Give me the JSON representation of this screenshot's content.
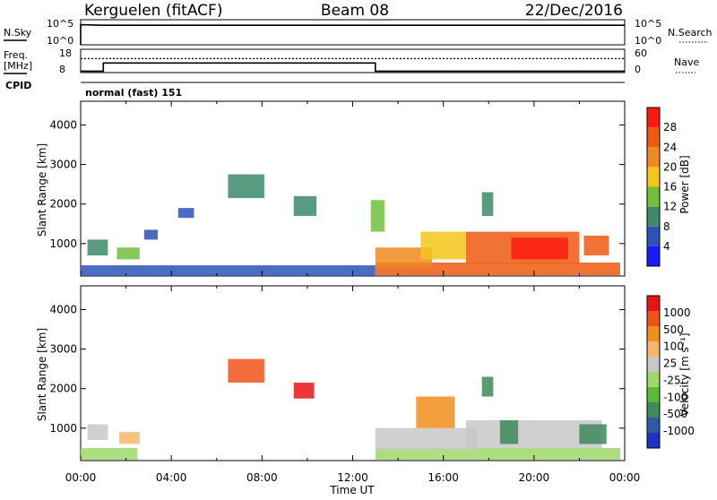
{
  "header": {
    "station": "Kerguelen (fitACF)",
    "beam": "Beam 08",
    "date": "22/Dec/2016"
  },
  "panels": {
    "nsky_label": "N.Sky",
    "nsearch_label": "N.Search",
    "freq_label_top": "Freq.",
    "freq_label_unit": "[MHz]",
    "nave_label": "Nave",
    "cpid_label": "CPID",
    "cpid_value": "normal (fast) 151",
    "noise_left_ticks": [
      "10^5",
      "10^0"
    ],
    "noise_right_ticks": [
      "10^5",
      "10^0"
    ],
    "freq_left_ticks": [
      "18",
      "8"
    ],
    "nave_right_ticks": [
      "60",
      "0"
    ]
  },
  "colors": {
    "power": [
      "#1a1aff",
      "#2a52b8",
      "#3b8a6a",
      "#6fbf3c",
      "#f5c51a",
      "#ef8a1c",
      "#ef5a10",
      "#ff1a10"
    ],
    "velocity": [
      "#e81414",
      "#f0521a",
      "#f28e1c",
      "#f6b66a",
      "#c8c8c8",
      "#a0d66a",
      "#5abb3a",
      "#3d8a5a",
      "#2e5aa8",
      "#2030c8"
    ]
  },
  "chart_data": [
    {
      "type": "line",
      "title": "N.Sky / N.Search",
      "x": [
        "00:00",
        "01:00",
        "02:00",
        "03:00",
        "04:00",
        "05:00",
        "06:00",
        "07:00",
        "08:00",
        "09:00",
        "10:00",
        "11:00",
        "12:00",
        "13:00",
        "14:00",
        "15:00",
        "16:00",
        "17:00",
        "18:00",
        "19:00",
        "20:00",
        "21:00",
        "22:00",
        "23:00",
        "24:00"
      ],
      "series": [
        {
          "name": "N.Sky",
          "values": [
            10000,
            8000,
            8000,
            8000,
            8000,
            8000,
            8000,
            8000,
            8000,
            8000,
            8000,
            8000,
            8000,
            8000,
            8000,
            8000,
            8000,
            8000,
            8000,
            8000,
            8000,
            8000,
            8000,
            8000,
            8000
          ]
        },
        {
          "name": "N.Search",
          "values": [
            10000,
            10000,
            10000,
            10000,
            10000,
            10000,
            10000,
            10000,
            10000,
            10000,
            10000,
            10000,
            10000,
            10000,
            10000,
            10000,
            10000,
            10000,
            10000,
            10000,
            10000,
            10000,
            10000,
            10000,
            10000
          ]
        }
      ],
      "ylim": [
        1,
        100000
      ]
    },
    {
      "type": "line",
      "title": "Freq. / Nave",
      "series": [
        {
          "name": "Freq.",
          "points": [
            [
              0,
              8.6
            ],
            [
              1.0,
              8.6
            ],
            [
              1.0,
              12.1
            ],
            [
              13.0,
              12.1
            ],
            [
              13.0,
              8.6
            ],
            [
              24,
              8.6
            ]
          ]
        },
        {
          "name": "Nave",
          "points": [
            [
              0,
              36
            ],
            [
              24,
              36
            ]
          ]
        }
      ],
      "ylim_freq": [
        8,
        18
      ],
      "ylim_nave": [
        0,
        60
      ]
    },
    {
      "type": "heatmap",
      "title": "Power [dB]",
      "xlabel": "Time UT",
      "ylabel": "Slant Range [km]",
      "x_ticks": [
        "00:00",
        "04:00",
        "08:00",
        "12:00",
        "16:00",
        "20:00",
        "00:00"
      ],
      "y_ticks": [
        "1000",
        "2000",
        "3000",
        "4000"
      ],
      "xlim": [
        0,
        24
      ],
      "ylim": [
        180,
        4600
      ],
      "colorbar_label": "Power [dB]",
      "colorbar_ticks": [
        "4",
        "8",
        "12",
        "16",
        "20",
        "24",
        "28"
      ],
      "regions": [
        {
          "t0": 0.0,
          "t1": 13.0,
          "r0": 180,
          "r1": 450,
          "level": 1
        },
        {
          "t0": 0.3,
          "t1": 1.2,
          "r0": 700,
          "r1": 1100,
          "level": 2
        },
        {
          "t0": 1.6,
          "t1": 2.6,
          "r0": 600,
          "r1": 900,
          "level": 3
        },
        {
          "t0": 2.8,
          "t1": 3.4,
          "r0": 1100,
          "r1": 1350,
          "level": 1
        },
        {
          "t0": 4.3,
          "t1": 5.0,
          "r0": 1650,
          "r1": 1900,
          "level": 1
        },
        {
          "t0": 6.5,
          "t1": 8.1,
          "r0": 2150,
          "r1": 2750,
          "level": 2
        },
        {
          "t0": 9.4,
          "t1": 10.4,
          "r0": 1700,
          "r1": 2200,
          "level": 2
        },
        {
          "t0": 12.8,
          "t1": 13.4,
          "r0": 1300,
          "r1": 2100,
          "level": 3
        },
        {
          "t0": 13.0,
          "t1": 23.8,
          "r0": 200,
          "r1": 520,
          "level": 6
        },
        {
          "t0": 13.0,
          "t1": 15.5,
          "r0": 400,
          "r1": 900,
          "level": 5
        },
        {
          "t0": 15.0,
          "t1": 17.0,
          "r0": 600,
          "r1": 1300,
          "level": 4
        },
        {
          "t0": 17.0,
          "t1": 22.0,
          "r0": 500,
          "r1": 1300,
          "level": 6
        },
        {
          "t0": 19.0,
          "t1": 21.5,
          "r0": 600,
          "r1": 1150,
          "level": 7
        },
        {
          "t0": 22.2,
          "t1": 23.3,
          "r0": 700,
          "r1": 1200,
          "level": 6
        },
        {
          "t0": 17.7,
          "t1": 18.2,
          "r0": 1700,
          "r1": 2300,
          "level": 2
        }
      ]
    },
    {
      "type": "heatmap",
      "title": "Velocity [m s^-1]",
      "xlabel": "Time UT",
      "ylabel": "Slant Range [km]",
      "x_ticks": [
        "00:00",
        "04:00",
        "08:00",
        "12:00",
        "16:00",
        "20:00",
        "00:00"
      ],
      "y_ticks": [
        "1000",
        "2000",
        "3000",
        "4000"
      ],
      "xlim": [
        0,
        24
      ],
      "ylim": [
        180,
        4600
      ],
      "colorbar_label": "Velocity [m s⁻¹]",
      "colorbar_ticks": [
        "1000",
        "500",
        "100",
        "25",
        "-25",
        "-100",
        "-500",
        "-1000"
      ],
      "regions": [
        {
          "t0": 0.0,
          "t1": 2.5,
          "r0": 200,
          "r1": 500,
          "level": 5
        },
        {
          "t0": 0.3,
          "t1": 1.2,
          "r0": 700,
          "r1": 1100,
          "level": 4
        },
        {
          "t0": 1.7,
          "t1": 2.6,
          "r0": 600,
          "r1": 900,
          "level": 3
        },
        {
          "t0": 6.5,
          "t1": 8.1,
          "r0": 2150,
          "r1": 2750,
          "level": 1
        },
        {
          "t0": 9.4,
          "t1": 10.3,
          "r0": 1750,
          "r1": 2150,
          "level": 0
        },
        {
          "t0": 13.0,
          "t1": 23.8,
          "r0": 200,
          "r1": 500,
          "level": 5
        },
        {
          "t0": 13.0,
          "t1": 17.5,
          "r0": 450,
          "r1": 1000,
          "level": 4
        },
        {
          "t0": 14.8,
          "t1": 16.5,
          "r0": 1000,
          "r1": 1800,
          "level": 2
        },
        {
          "t0": 17.0,
          "t1": 23.0,
          "r0": 500,
          "r1": 1200,
          "level": 4
        },
        {
          "t0": 18.5,
          "t1": 19.3,
          "r0": 600,
          "r1": 1200,
          "level": 7
        },
        {
          "t0": 22.0,
          "t1": 23.2,
          "r0": 600,
          "r1": 1100,
          "level": 7
        },
        {
          "t0": 17.7,
          "t1": 18.2,
          "r0": 1800,
          "r1": 2300,
          "level": 7
        }
      ]
    }
  ]
}
